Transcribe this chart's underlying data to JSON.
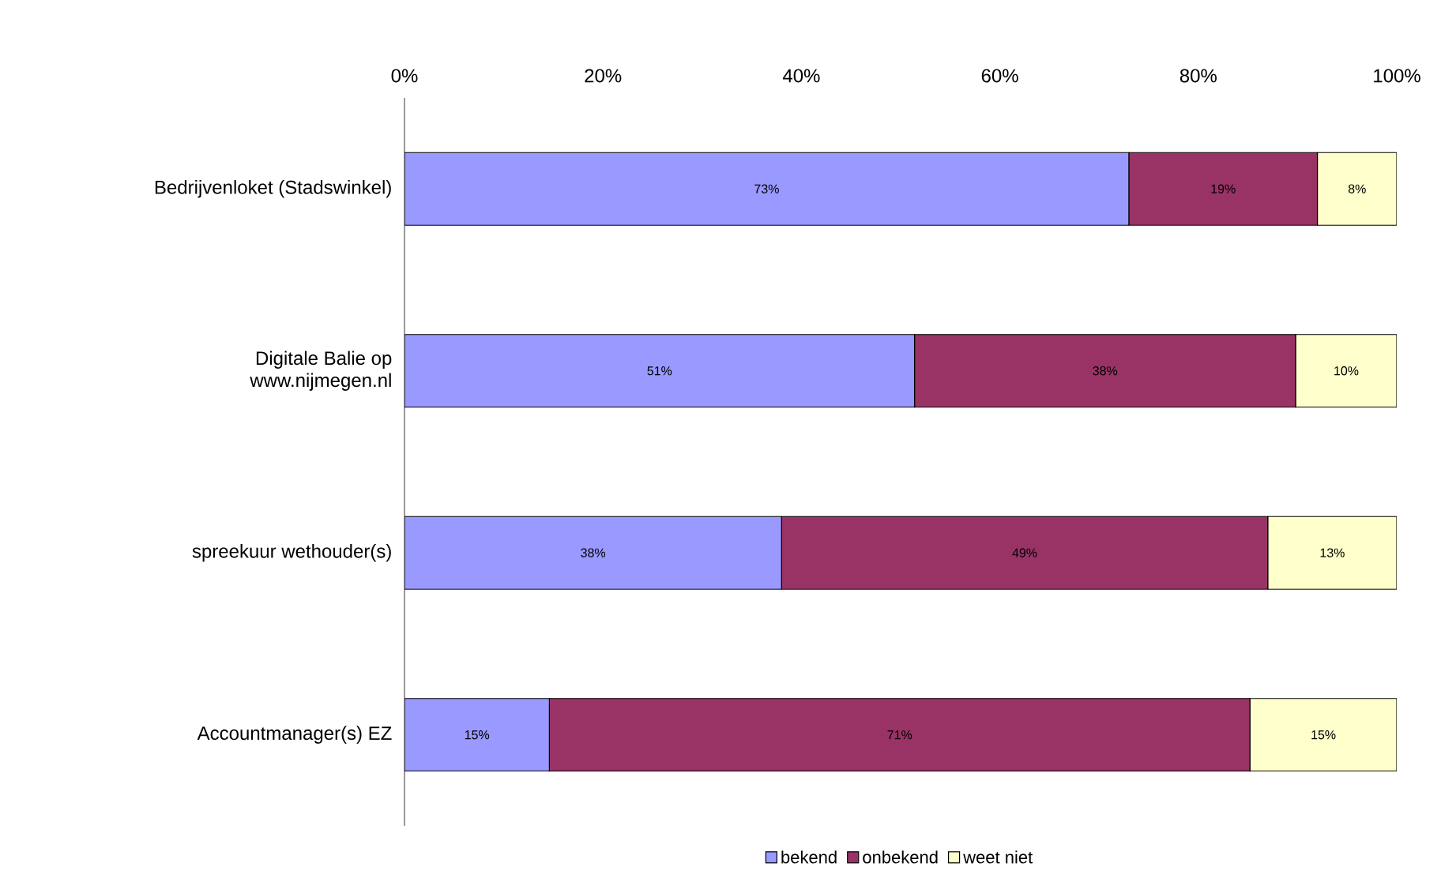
{
  "chart_data": {
    "type": "bar",
    "orientation": "horizontal",
    "stacked": true,
    "categories": [
      "Bedrijvenloket (Stadswinkel)",
      "Digitale Balie op www.nijmegen.nl",
      "spreekuur wethouder(s)",
      "Accountmanager(s) EZ"
    ],
    "series": [
      {
        "name": "bekend",
        "color": "#9999ff",
        "values": [
          73,
          51.4,
          38,
          14.6
        ],
        "value_labels": [
          "73%",
          "51%",
          "38%",
          "15%"
        ]
      },
      {
        "name": "onbekend",
        "color": "#993366",
        "values": [
          19,
          38.4,
          49,
          70.6
        ],
        "value_labels": [
          "19%",
          "38%",
          "49%",
          "71%"
        ]
      },
      {
        "name": "weet niet",
        "color": "#ffffcc",
        "values": [
          8,
          10.2,
          13,
          14.8
        ],
        "value_labels": [
          "8%",
          "10%",
          "13%",
          "15%"
        ]
      }
    ],
    "xlim": [
      0,
      100
    ],
    "xticks": [
      {
        "value": 0,
        "label": "0%"
      },
      {
        "value": 20,
        "label": "20%"
      },
      {
        "value": 40,
        "label": "40%"
      },
      {
        "value": 60,
        "label": "60%"
      },
      {
        "value": 80,
        "label": "80%"
      },
      {
        "value": 100,
        "label": "100%"
      }
    ],
    "legend": "bottom"
  }
}
